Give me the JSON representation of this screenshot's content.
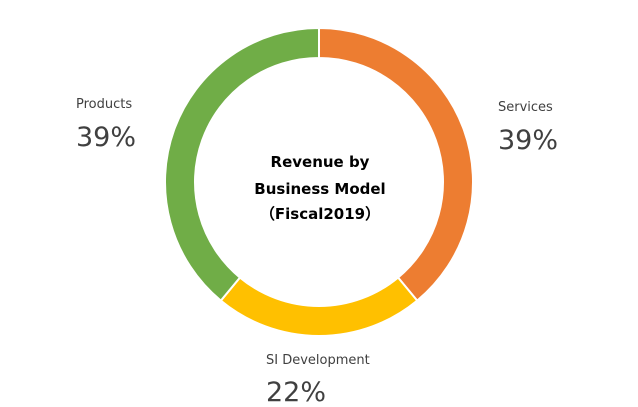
{
  "chart_data": {
    "type": "pie",
    "title_lines": [
      "Revenue by",
      "Business Model",
      "（Fiscal2019）"
    ],
    "categories": [
      "Services",
      "SI Development",
      "Products"
    ],
    "values": [
      39,
      22,
      39
    ],
    "value_labels": [
      "39%",
      "22%",
      "39%"
    ],
    "colors": [
      "#ED7D31",
      "#FFC000",
      "#70AD47"
    ],
    "donut": true,
    "start_angle": "12 o'clock",
    "direction": "clockwise",
    "legend": "none"
  }
}
